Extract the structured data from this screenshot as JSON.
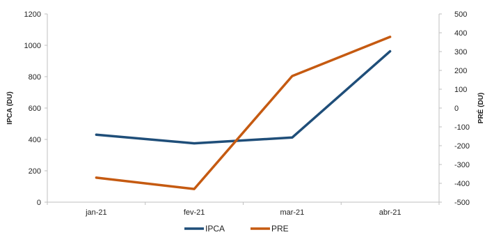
{
  "chart_data": {
    "type": "line",
    "categories": [
      "jan-21",
      "fev-21",
      "mar-21",
      "abr-21"
    ],
    "y_left": {
      "label": "IPCA (DU)",
      "range": [
        0,
        1200
      ],
      "ticks": [
        0,
        200,
        400,
        600,
        800,
        1000,
        1200
      ]
    },
    "y_right": {
      "label": "PRÉ (DU)",
      "range": [
        -500,
        500
      ],
      "ticks": [
        -500,
        -400,
        -300,
        -200,
        -100,
        0,
        100,
        200,
        300,
        400,
        500
      ]
    },
    "series": [
      {
        "name": "IPCA",
        "axis": "left",
        "color": "#1f4e79",
        "values": [
          430,
          375,
          412,
          962
        ]
      },
      {
        "name": "PRE",
        "axis": "right",
        "color": "#c55a11",
        "values": [
          -370,
          -430,
          170,
          378
        ]
      }
    ],
    "grid": false,
    "legend_position": "bottom"
  }
}
